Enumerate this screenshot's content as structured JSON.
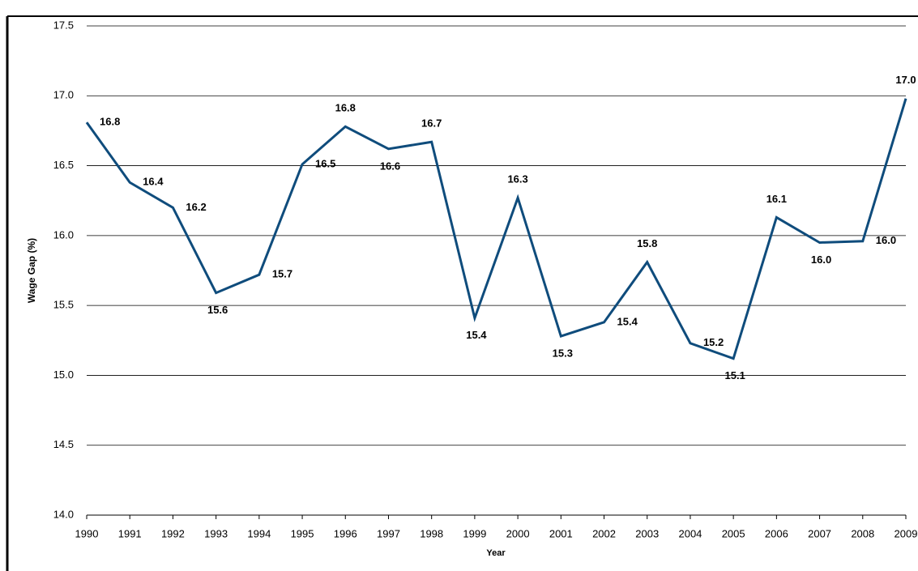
{
  "chart_data": {
    "type": "line",
    "ylabel": "Wage Gap (%)",
    "xlabel": "Year",
    "categories": [
      "1990",
      "1991",
      "1992",
      "1993",
      "1994",
      "1995",
      "1996",
      "1997",
      "1998",
      "1999",
      "2000",
      "2001",
      "2002",
      "2003",
      "2004",
      "2005",
      "2006",
      "2007",
      "2008",
      "2009"
    ],
    "series": [
      {
        "name": "Wage Gap",
        "color": "#0f4c7c",
        "values": [
          16.81,
          16.38,
          16.2,
          15.59,
          15.72,
          16.51,
          16.78,
          16.62,
          16.67,
          15.41,
          16.27,
          15.28,
          15.38,
          15.81,
          15.23,
          15.12,
          16.13,
          15.95,
          15.96,
          16.98
        ],
        "value_labels": [
          "16.8",
          "16.4",
          "16.2",
          "15.6",
          "15.7",
          "16.5",
          "16.8",
          "16.6",
          "16.7",
          "15.4",
          "16.3",
          "15.3",
          "15.4",
          "15.8",
          "15.2",
          "15.1",
          "16.1",
          "16.0",
          "16.0",
          "17.0"
        ]
      }
    ],
    "ylim": [
      14.0,
      17.5
    ],
    "yticks": [
      {
        "value": 14.0,
        "label": "14.0"
      },
      {
        "value": 14.5,
        "label": "14.5"
      },
      {
        "value": 15.0,
        "label": "15.0"
      },
      {
        "value": 15.5,
        "label": "15.5"
      },
      {
        "value": 16.0,
        "label": "16.0"
      },
      {
        "value": 16.5,
        "label": "16.5"
      },
      {
        "value": 17.0,
        "label": "17.0"
      },
      {
        "value": 17.5,
        "label": "17.5"
      }
    ],
    "grid": true
  }
}
